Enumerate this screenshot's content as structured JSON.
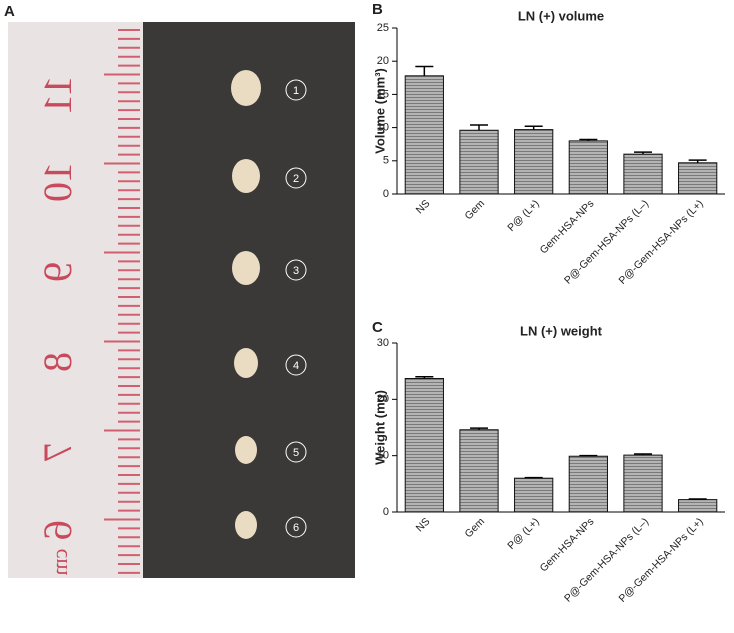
{
  "panel_labels": [
    "A",
    "B",
    "C"
  ],
  "photo": {
    "markers": [
      "1",
      "2",
      "3",
      "4",
      "5",
      "6"
    ],
    "ruler_labels": [
      "11",
      "10",
      "9",
      "8",
      "7",
      "6",
      "cm"
    ]
  },
  "chart_data": [
    {
      "type": "bar",
      "title": "LN (+) volume",
      "y_label": "Volume (mm³)",
      "categories": [
        "NS",
        "Gem",
        "P@ (L+)",
        "Gem-HSA-NPs",
        "P@-Gem-HSA-NPs (L–)",
        "P@-Gem-HSA-NPs (L+)"
      ],
      "values": [
        17.8,
        9.6,
        9.7,
        8.0,
        6.0,
        4.7
      ],
      "errors": [
        1.4,
        0.8,
        0.5,
        0.2,
        0.3,
        0.4
      ],
      "color": "#a8a8a8",
      "ylim": [
        0,
        25
      ],
      "yticks": [
        0,
        5,
        10,
        15,
        20,
        25
      ]
    },
    {
      "type": "bar",
      "title": "LN (+) weight",
      "y_label": "Weight (mg)",
      "categories": [
        "NS",
        "Gem",
        "P@ (L+)",
        "Gem-HSA-NPs",
        "P@-Gem-HSA-NPs (L–)",
        "P@-Gem-HSA-NPs (L+)"
      ],
      "values": [
        23.7,
        14.6,
        6.0,
        9.9,
        10.1,
        2.2
      ],
      "errors": [
        0.3,
        0.3,
        0.1,
        0.1,
        0.2,
        0.1
      ],
      "color": "#a8a8a8",
      "ylim": [
        0,
        30
      ],
      "yticks": [
        0,
        10,
        20,
        30
      ]
    }
  ]
}
